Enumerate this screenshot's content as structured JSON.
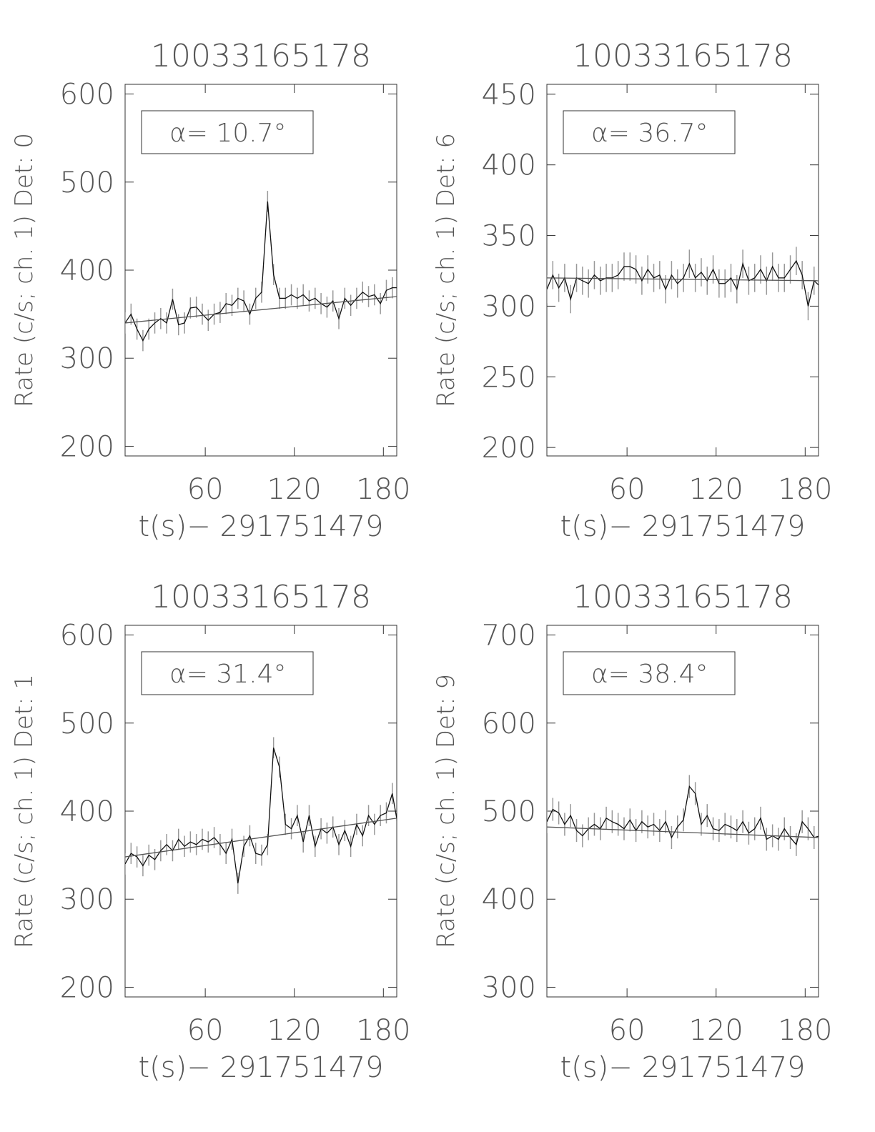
{
  "chart_data": [
    {
      "type": "line",
      "title": "10033165178",
      "ylabel": "Rate (c/s; ch. 1) Det: 0",
      "xlabel": "t(s)− 291751479",
      "annotation": "α= 10.7°",
      "x": [
        6,
        10,
        14,
        18,
        22,
        26,
        30,
        34,
        38,
        42,
        46,
        50,
        54,
        58,
        62,
        66,
        70,
        74,
        78,
        82,
        86,
        90,
        94,
        98,
        102,
        106,
        110,
        114,
        118,
        122,
        126,
        130,
        134,
        138,
        142,
        146,
        150,
        154,
        158,
        162,
        166,
        170,
        174,
        178,
        182,
        186,
        190
      ],
      "values": [
        340,
        350,
        333,
        320,
        333,
        340,
        345,
        340,
        367,
        338,
        340,
        357,
        358,
        350,
        343,
        350,
        352,
        362,
        360,
        368,
        365,
        350,
        368,
        375,
        478,
        395,
        368,
        368,
        372,
        368,
        372,
        365,
        368,
        362,
        358,
        365,
        345,
        368,
        360,
        368,
        375,
        370,
        372,
        362,
        377,
        380,
        380
      ],
      "error": 12,
      "fit": {
        "x": [
          6,
          189
        ],
        "values": [
          340,
          370
        ]
      },
      "xlim": [
        6,
        189
      ],
      "ylim": [
        189,
        611
      ],
      "xticks": [
        60,
        120,
        180
      ],
      "yticks": [
        200,
        300,
        400,
        500,
        600
      ]
    },
    {
      "type": "line",
      "title": "10033165178",
      "ylabel": "Rate (c/s; ch. 1) Det: 6",
      "xlabel": "t(s)− 291751479",
      "annotation": "α= 36.7°",
      "x": [
        6,
        10,
        14,
        18,
        22,
        26,
        30,
        34,
        38,
        42,
        46,
        50,
        54,
        58,
        62,
        66,
        70,
        74,
        78,
        82,
        86,
        90,
        94,
        98,
        102,
        106,
        110,
        114,
        118,
        122,
        126,
        130,
        134,
        138,
        142,
        146,
        150,
        154,
        158,
        162,
        166,
        170,
        174,
        178,
        182,
        186,
        190
      ],
      "values": [
        312,
        322,
        313,
        320,
        305,
        320,
        318,
        316,
        322,
        318,
        320,
        320,
        322,
        328,
        328,
        326,
        318,
        326,
        320,
        322,
        312,
        322,
        316,
        320,
        330,
        320,
        324,
        318,
        326,
        316,
        316,
        320,
        312,
        330,
        318,
        320,
        326,
        318,
        328,
        320,
        320,
        326,
        332,
        322,
        300,
        318,
        314
      ],
      "error": 10,
      "fit": {
        "x": [
          6,
          189
        ],
        "values": [
          320,
          318
        ]
      },
      "xlim": [
        6,
        189
      ],
      "ylim": [
        194,
        457
      ],
      "xticks": [
        60,
        120,
        180
      ],
      "yticks": [
        200,
        250,
        300,
        350,
        400,
        450
      ]
    },
    {
      "type": "line",
      "title": "10033165178",
      "ylabel": "Rate (c/s; ch. 1) Det: 1",
      "xlabel": "t(s)− 291751479",
      "annotation": "α= 31.4°",
      "x": [
        6,
        10,
        14,
        18,
        22,
        26,
        30,
        34,
        38,
        42,
        46,
        50,
        54,
        58,
        62,
        66,
        70,
        74,
        78,
        82,
        86,
        90,
        94,
        98,
        102,
        106,
        110,
        114,
        118,
        122,
        126,
        130,
        134,
        138,
        142,
        146,
        150,
        154,
        158,
        162,
        166,
        170,
        174,
        178,
        182,
        186,
        190
      ],
      "values": [
        340,
        352,
        348,
        338,
        350,
        345,
        355,
        362,
        355,
        368,
        360,
        365,
        362,
        368,
        365,
        370,
        362,
        352,
        368,
        318,
        360,
        372,
        352,
        350,
        362,
        472,
        450,
        385,
        380,
        395,
        365,
        395,
        360,
        380,
        375,
        382,
        362,
        378,
        360,
        385,
        372,
        395,
        385,
        395,
        398,
        420,
        382
      ],
      "error": 12,
      "fit": {
        "x": [
          6,
          189
        ],
        "values": [
          348,
          392
        ]
      },
      "xlim": [
        6,
        189
      ],
      "ylim": [
        189,
        611
      ],
      "xticks": [
        60,
        120,
        180
      ],
      "yticks": [
        200,
        300,
        400,
        500,
        600
      ]
    },
    {
      "type": "line",
      "title": "10033165178",
      "ylabel": "Rate (c/s; ch. 1) Det: 9",
      "xlabel": "t(s)− 291751479",
      "annotation": "α= 38.4°",
      "x": [
        6,
        10,
        14,
        18,
        22,
        26,
        30,
        34,
        38,
        42,
        46,
        50,
        54,
        58,
        62,
        66,
        70,
        74,
        78,
        82,
        86,
        90,
        94,
        98,
        102,
        106,
        110,
        114,
        118,
        122,
        126,
        130,
        134,
        138,
        142,
        146,
        150,
        154,
        158,
        162,
        166,
        170,
        174,
        178,
        182,
        186,
        190
      ],
      "values": [
        488,
        502,
        498,
        485,
        495,
        478,
        472,
        480,
        485,
        480,
        492,
        488,
        485,
        480,
        490,
        478,
        488,
        482,
        485,
        478,
        488,
        470,
        482,
        490,
        528,
        520,
        485,
        495,
        480,
        478,
        485,
        482,
        478,
        488,
        475,
        480,
        492,
        468,
        472,
        468,
        480,
        470,
        462,
        488,
        480,
        470,
        472
      ],
      "error": 13,
      "fit": {
        "x": [
          6,
          189
        ],
        "values": [
          482,
          470
        ]
      },
      "xlim": [
        6,
        189
      ],
      "ylim": [
        289,
        711
      ],
      "xticks": [
        60,
        120,
        180
      ],
      "yticks": [
        300,
        400,
        500,
        600,
        700
      ]
    }
  ]
}
